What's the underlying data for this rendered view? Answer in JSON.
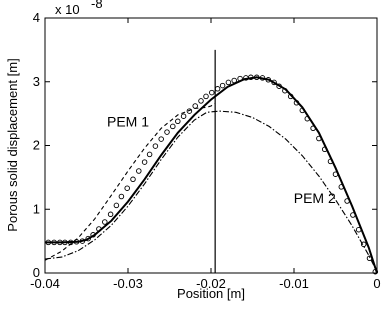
{
  "chart_data": {
    "type": "line",
    "xlabel": "Position [m]",
    "ylabel": "Porous solid  displacement [m]",
    "y_multiplier": "x 10",
    "y_exponent": "-8",
    "xlim": [
      -0.04,
      0
    ],
    "ylim": [
      0,
      4
    ],
    "x_ticks": [
      -0.04,
      -0.03,
      -0.02,
      -0.01,
      0
    ],
    "x_tick_labels": [
      "-0.04",
      "-0.03",
      "-0.02",
      "-0.01",
      "0"
    ],
    "y_ticks": [
      0,
      1,
      2,
      3,
      4
    ],
    "y_tick_labels": [
      "0",
      "1",
      "2",
      "3",
      "4"
    ],
    "grid": false,
    "annotations": [
      {
        "text": "PEM 1",
        "x": -0.03,
        "y": 2.3
      },
      {
        "text": "PEM 2",
        "x": -0.0075,
        "y": 1.1
      }
    ],
    "interface_line_x": -0.0195,
    "series": [
      {
        "style": "solid-thick",
        "color": "#000000",
        "x": [
          -0.04,
          -0.038,
          -0.036,
          -0.035,
          -0.034,
          -0.032,
          -0.03,
          -0.028,
          -0.026,
          -0.024,
          -0.022,
          -0.02,
          -0.018,
          -0.016,
          -0.0145,
          -0.013,
          -0.011,
          -0.009,
          -0.007,
          -0.005,
          -0.003,
          -0.001,
          0
        ],
        "y": [
          0.48,
          0.48,
          0.49,
          0.52,
          0.6,
          0.82,
          1.12,
          1.47,
          1.85,
          2.2,
          2.48,
          2.72,
          2.92,
          3.04,
          3.07,
          3.03,
          2.88,
          2.6,
          2.2,
          1.65,
          1.05,
          0.4,
          0.0
        ]
      },
      {
        "style": "circles",
        "color": "#000000",
        "x": [
          -0.0396,
          -0.0389,
          -0.0382,
          -0.0376,
          -0.0369,
          -0.0362,
          -0.0355,
          -0.0348,
          -0.0342,
          -0.0335,
          -0.0328,
          -0.0321,
          -0.0314,
          -0.0308,
          -0.0301,
          -0.0294,
          -0.0287,
          -0.028,
          -0.0274,
          -0.0267,
          -0.026,
          -0.0253,
          -0.0246,
          -0.024,
          -0.0233,
          -0.0226,
          -0.0219,
          -0.0212,
          -0.0206,
          -0.0199,
          -0.0192,
          -0.0186,
          -0.0179,
          -0.0172,
          -0.0165,
          -0.0158,
          -0.0152,
          -0.0145,
          -0.0138,
          -0.0131,
          -0.0124,
          -0.0118,
          -0.0111,
          -0.0104,
          -0.0097,
          -0.009,
          -0.0084,
          -0.0077,
          -0.007,
          -0.0063,
          -0.0056,
          -0.005,
          -0.0043,
          -0.0036,
          -0.0029,
          -0.0022,
          -0.0016,
          -0.0009,
          -0.0002
        ],
        "y": [
          0.48,
          0.48,
          0.48,
          0.48,
          0.48,
          0.49,
          0.5,
          0.54,
          0.6,
          0.69,
          0.8,
          0.92,
          1.06,
          1.2,
          1.33,
          1.47,
          1.6,
          1.74,
          1.86,
          1.99,
          2.1,
          2.21,
          2.3,
          2.38,
          2.46,
          2.54,
          2.62,
          2.7,
          2.77,
          2.83,
          2.89,
          2.94,
          2.99,
          3.02,
          3.05,
          3.06,
          3.07,
          3.07,
          3.06,
          3.03,
          2.99,
          2.93,
          2.86,
          2.77,
          2.67,
          2.55,
          2.42,
          2.27,
          2.11,
          1.94,
          1.75,
          1.55,
          1.35,
          1.13,
          0.91,
          0.68,
          0.45,
          0.23,
          0.02
        ]
      },
      {
        "style": "dashed",
        "color": "#000000",
        "x": [
          -0.04,
          -0.038,
          -0.036,
          -0.034,
          -0.032,
          -0.03,
          -0.028,
          -0.026,
          -0.024,
          -0.022,
          -0.0205,
          -0.02,
          -0.0195
        ],
        "y": [
          0.2,
          0.34,
          0.55,
          0.85,
          1.22,
          1.6,
          1.96,
          2.27,
          2.48,
          2.58,
          2.6,
          2.62,
          2.66
        ]
      },
      {
        "style": "dashdot",
        "color": "#000000",
        "x": [
          -0.04,
          -0.038,
          -0.036,
          -0.034,
          -0.032,
          -0.03,
          -0.028,
          -0.026,
          -0.024,
          -0.022,
          -0.0205,
          -0.019,
          -0.017,
          -0.015,
          -0.013,
          -0.011,
          -0.009,
          -0.007,
          -0.005,
          -0.003,
          -0.001,
          0
        ],
        "y": [
          0.22,
          0.25,
          0.35,
          0.52,
          0.75,
          1.05,
          1.4,
          1.78,
          2.13,
          2.4,
          2.52,
          2.54,
          2.52,
          2.44,
          2.3,
          2.1,
          1.84,
          1.52,
          1.15,
          0.74,
          0.28,
          0.02
        ]
      }
    ]
  }
}
